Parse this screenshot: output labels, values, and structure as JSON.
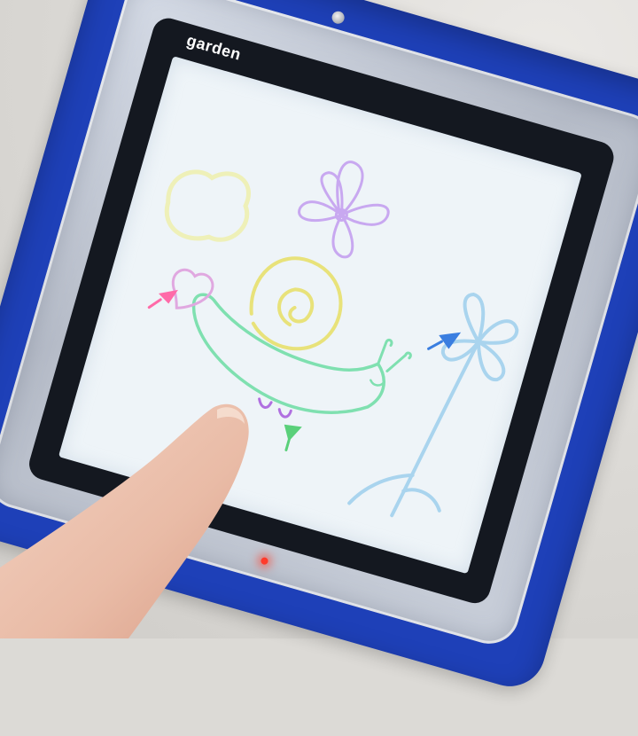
{
  "screen": {
    "label": "garden"
  },
  "colors": {
    "case": "#1e40b8",
    "bezel": "#141820",
    "screen": "#eef4f8",
    "flower": "#c8a8f0",
    "snail": "#e8e27a",
    "snail_body": "#7fe0b0",
    "blue_flower": "#a9d4ee",
    "heart": "#e0a8e0",
    "cursor_pink": "#ff6aa8",
    "cursor_blue": "#3a7ee0",
    "cursor_green": "#5ad07a"
  }
}
